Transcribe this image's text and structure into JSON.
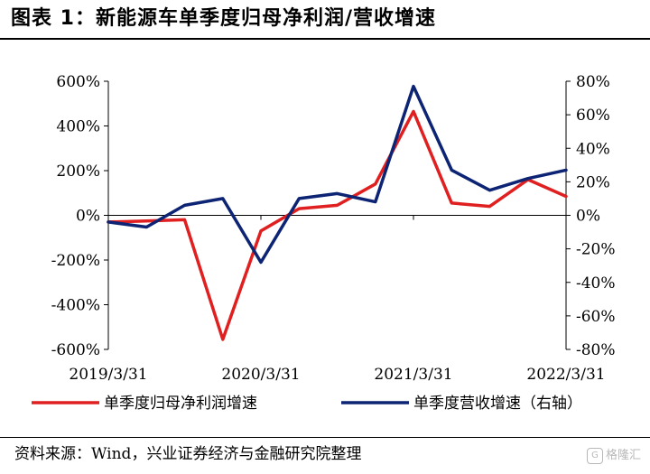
{
  "header": {
    "title": "图表 1：新能源车单季度归母净利润/营收增速"
  },
  "footer": {
    "source": "资料来源：Wind，兴业证券经济与金融研究院整理"
  },
  "watermark": {
    "logo": "G",
    "text": "格隆汇"
  },
  "chart_data": {
    "type": "line",
    "x": [
      "2019/3/31",
      "2019/6/30",
      "2019/9/30",
      "2019/12/31",
      "2020/3/31",
      "2020/6/30",
      "2020/9/30",
      "2020/12/31",
      "2021/3/31",
      "2021/6/30",
      "2021/9/30",
      "2021/12/31",
      "2022/3/31"
    ],
    "x_tick_labels": [
      "2019/3/31",
      "2020/3/31",
      "2021/3/31",
      "2022/3/31"
    ],
    "x_tick_indices": [
      0,
      4,
      8,
      12
    ],
    "series": [
      {
        "name": "单季度归母净利润增速",
        "axis": "left",
        "color": "#e02020",
        "values": [
          -30,
          -25,
          -20,
          -555,
          -70,
          30,
          45,
          140,
          465,
          55,
          40,
          160,
          85
        ]
      },
      {
        "name": "单季度营收增速（右轴）",
        "axis": "right",
        "color": "#0c2473",
        "values": [
          -4,
          -7,
          6,
          10,
          -28,
          10,
          13,
          8,
          77,
          27,
          15,
          22,
          27
        ]
      }
    ],
    "y_left": {
      "ylim": [
        -600,
        600
      ],
      "ticks": [
        600,
        400,
        200,
        0,
        -200,
        -400,
        -600
      ],
      "tick_labels": [
        "600%",
        "400%",
        "200%",
        "0%",
        "-200%",
        "-400%",
        "-600%"
      ]
    },
    "y_right": {
      "ylim": [
        -80,
        80
      ],
      "ticks": [
        80,
        60,
        40,
        20,
        0,
        -20,
        -40,
        -60,
        -80
      ],
      "tick_labels": [
        "80%",
        "60%",
        "40%",
        "20%",
        "0%",
        "-20%",
        "-40%",
        "-60%",
        "-80%"
      ]
    },
    "legend": {
      "placement": "bottom"
    },
    "grid": false
  }
}
